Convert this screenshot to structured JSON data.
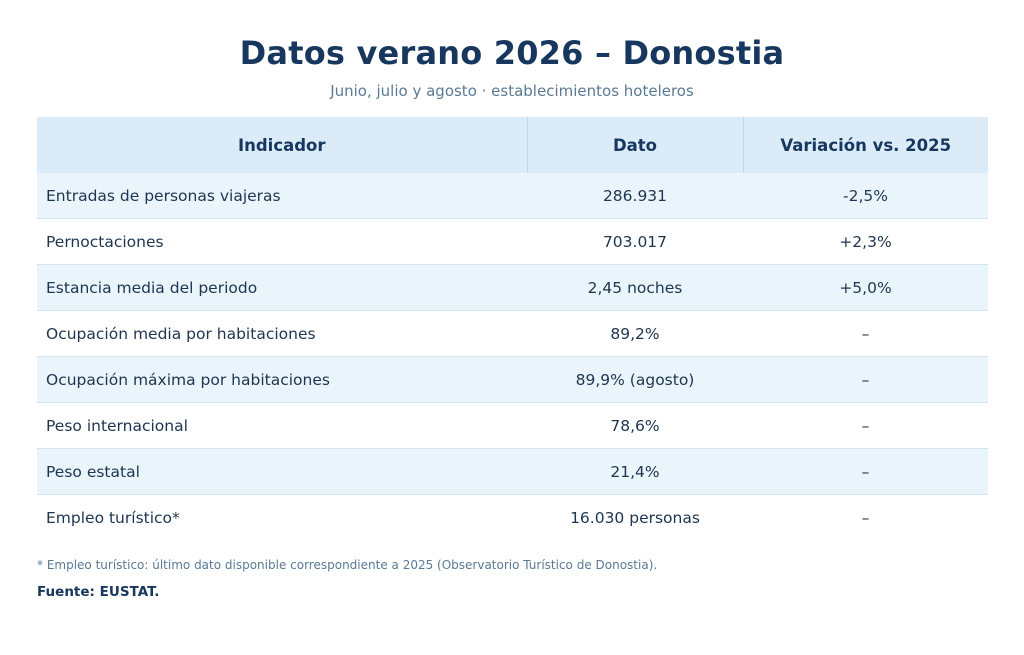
{
  "header": {
    "title": "Datos verano 2026 – Donostia",
    "subtitle": "Junio, julio y agosto · establecimientos hoteleros"
  },
  "table": {
    "columns": [
      "Indicador",
      "Dato",
      "Variación vs. 2025"
    ],
    "rows": [
      {
        "indicator": "Entradas de personas viajeras",
        "value": "286.931",
        "variation": "-2,5%"
      },
      {
        "indicator": "Pernoctaciones",
        "value": "703.017",
        "variation": "+2,3%"
      },
      {
        "indicator": "Estancia media del periodo",
        "value": "2,45 noches",
        "variation": "+5,0%"
      },
      {
        "indicator": "Ocupación media por habitaciones",
        "value": "89,2%",
        "variation": "–"
      },
      {
        "indicator": "Ocupación máxima por habitaciones",
        "value": "89,9% (agosto)",
        "variation": "–"
      },
      {
        "indicator": "Peso internacional",
        "value": "78,6%",
        "variation": "–"
      },
      {
        "indicator": "Peso estatal",
        "value": "21,4%",
        "variation": "–"
      },
      {
        "indicator": "Empleo turístico*",
        "value": "16.030 personas",
        "variation": "–"
      }
    ]
  },
  "footer": {
    "footnote": "* Empleo turístico: último dato disponible correspondiente a 2025 (Observatorio Turístico de Donostia).",
    "source": "Fuente: EUSTAT."
  },
  "colors": {
    "title": "#17375e",
    "header_background": "#dbecf8",
    "row_alt_background": "#e9f4fb",
    "muted_text": "#5a7a96"
  }
}
